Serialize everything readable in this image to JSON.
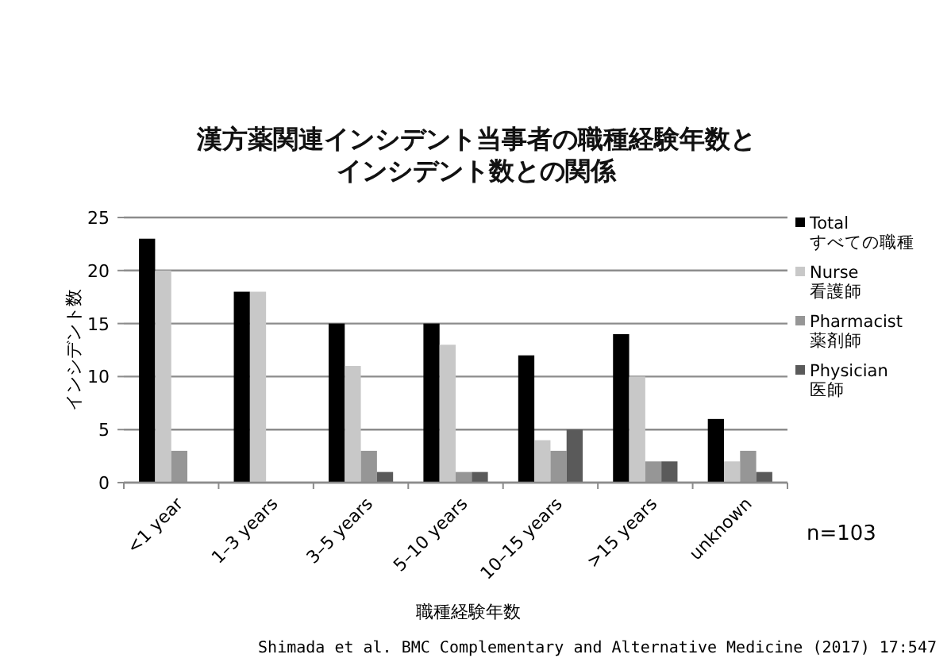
{
  "chart_data": {
    "type": "bar",
    "title": "漢方薬関連インシデント当事者の職種経験年数とインシデント数との関係",
    "ylabel": "インシデント数",
    "xlabel": "職種経験年数",
    "categories": [
      "<1 year",
      "1–3 years",
      "3–5 years",
      "5–10 years",
      "10–15 years",
      ">15 years",
      "unknown"
    ],
    "series": [
      {
        "name": "Total\nすべての職種",
        "color": "#000000",
        "values": [
          23,
          18,
          15,
          15,
          12,
          14,
          6
        ]
      },
      {
        "name": "Nurse\n看護師",
        "color": "#c8c8c8",
        "values": [
          20,
          18,
          11,
          13,
          4,
          10,
          2
        ]
      },
      {
        "name": "Pharmacist\n薬剤師",
        "color": "#969696",
        "values": [
          3,
          0,
          3,
          1,
          3,
          2,
          3
        ]
      },
      {
        "name": "Physician\n医師",
        "color": "#5a5a5a",
        "values": [
          0,
          0,
          1,
          1,
          5,
          2,
          1
        ]
      }
    ],
    "ylim": [
      0,
      25
    ],
    "yticks": [
      0,
      5,
      10,
      15,
      20,
      25
    ],
    "grid": "y",
    "legend": "right",
    "annotations": [
      "n=103",
      "Shimada et al. BMC Complementary and Alternative Medicine (2017) 17:547"
    ]
  }
}
